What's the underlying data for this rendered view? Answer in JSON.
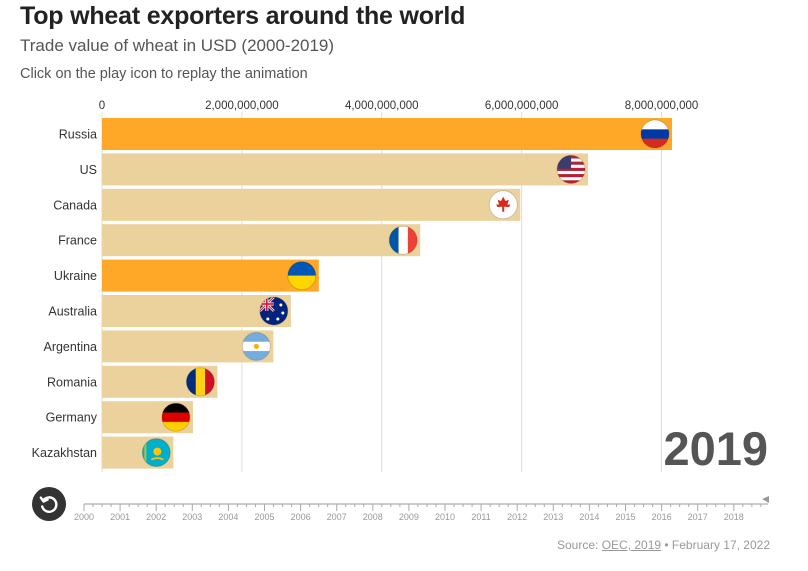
{
  "header": {
    "title": "Top wheat exporters around the world",
    "subtitle": "Trade value of wheat in USD (2000-2019)",
    "note": "Click on the play icon to replay the animation"
  },
  "colors": {
    "highlight": "#ffa726",
    "bar": "#ebd19b",
    "grid": "#dcdcdc"
  },
  "chart_data": {
    "type": "bar",
    "orientation": "horizontal",
    "categories": [
      "Russia",
      "US",
      "Canada",
      "France",
      "Ukraine",
      "Australia",
      "Argentina",
      "Romania",
      "Germany",
      "Kazakhstan"
    ],
    "values": [
      8150000000,
      6950000000,
      5980000000,
      4550000000,
      3100000000,
      2700000000,
      2450000000,
      1650000000,
      1300000000,
      1020000000
    ],
    "highlighted": [
      "Russia",
      "Ukraine"
    ],
    "flag_icons": [
      "russia-flag-icon",
      "us-flag-icon",
      "canada-flag-icon",
      "france-flag-icon",
      "ukraine-flag-icon",
      "australia-flag-icon",
      "argentina-flag-icon",
      "romania-flag-icon",
      "germany-flag-icon",
      "kazakhstan-flag-icon"
    ],
    "xticks": [
      0,
      2000000000,
      4000000000,
      6000000000,
      8000000000
    ],
    "xtick_labels": [
      "0",
      "2,000,000,000",
      "4,000,000,000",
      "6,000,000,000",
      "8,000,000,000"
    ],
    "xlim": [
      0,
      8150000000
    ],
    "grid": true,
    "current_year": "2019"
  },
  "timeline": {
    "years": [
      "2000",
      "2001",
      "2002",
      "2003",
      "2004",
      "2005",
      "2006",
      "2007",
      "2008",
      "2009",
      "2010",
      "2011",
      "2012",
      "2013",
      "2014",
      "2015",
      "2016",
      "2017",
      "2018"
    ],
    "current": "2019",
    "replay_icon": "replay-icon"
  },
  "footer": {
    "source_prefix": "Source: ",
    "source_link": "OEC, 2019",
    "date": " • February 17, 2022"
  }
}
